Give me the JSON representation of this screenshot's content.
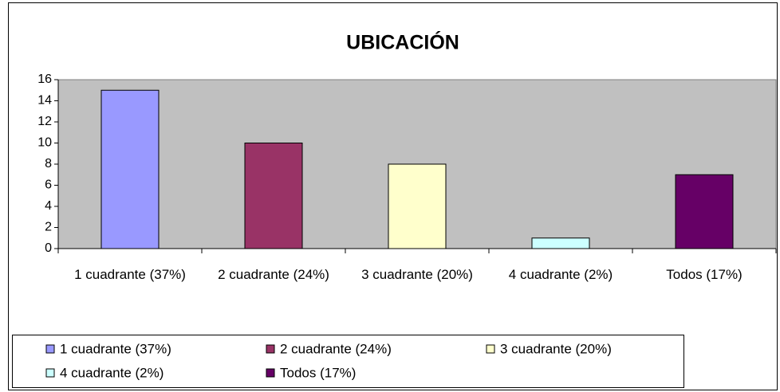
{
  "chart_data": {
    "type": "bar",
    "title": "UBICACIÓN",
    "categories": [
      "1 cuadrante (37%)",
      "2 cuadrante (24%)",
      "3 cuadrante (20%)",
      "4 cuadrante (2%)",
      "Todos (17%)"
    ],
    "values": [
      15,
      10,
      8,
      1,
      7
    ],
    "colors": [
      "#9999ff",
      "#993366",
      "#ffffcc",
      "#ccffff",
      "#660066"
    ],
    "ylim": [
      0,
      16
    ],
    "yticks": [
      0,
      2,
      4,
      6,
      8,
      10,
      12,
      14,
      16
    ],
    "legend": "bottom"
  }
}
